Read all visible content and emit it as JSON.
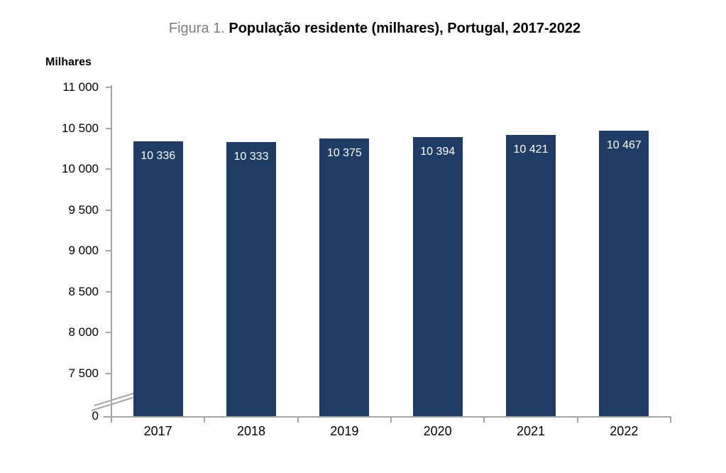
{
  "title": {
    "figure_label": "Figura 1.",
    "text": "População residente (milhares), Portugal, 2017-2022"
  },
  "chart_data": {
    "type": "bar",
    "title": "Figura 1. População residente (milhares), Portugal, 2017-2022",
    "ylabel": "Milhares",
    "xlabel": "",
    "categories": [
      "2017",
      "2018",
      "2019",
      "2020",
      "2021",
      "2022"
    ],
    "values": [
      10336,
      10333,
      10375,
      10394,
      10421,
      10467
    ],
    "value_labels": [
      "10 336",
      "10 333",
      "10 375",
      "10 394",
      "10 421",
      "10 467"
    ],
    "yticks": [
      {
        "label": "11 000",
        "value": 11000
      },
      {
        "label": "10 500",
        "value": 10500
      },
      {
        "label": "10 000",
        "value": 10000
      },
      {
        "label": "9 500",
        "value": 9500
      },
      {
        "label": "9 000",
        "value": 9000
      },
      {
        "label": "8 500",
        "value": 8500
      },
      {
        "label": "8 000",
        "value": 8000
      },
      {
        "label": "7 500",
        "value": 7500
      },
      {
        "label": "0",
        "value": 0
      }
    ],
    "ylim": [
      0,
      11000
    ],
    "visible_value_range": [
      7500,
      11000
    ],
    "axis_break": true,
    "grid": false,
    "legend": false,
    "colors": {
      "bar": "#1e3c64",
      "axis": "#a6a6a6",
      "value_label": "#ffffff",
      "figure_label": "#7f7f7f",
      "title_text": "#000000",
      "tick_label": "#000000"
    }
  }
}
